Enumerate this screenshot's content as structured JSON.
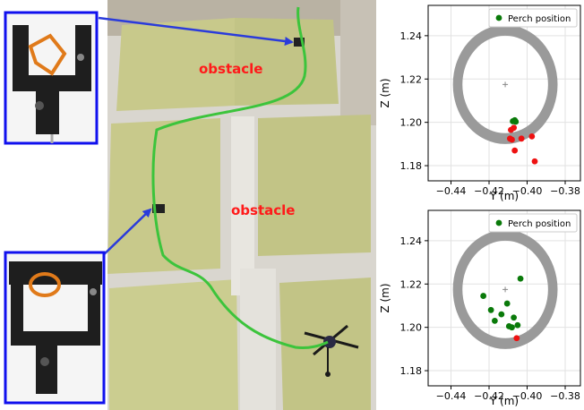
{
  "photo": {
    "obstacle_label_1": "obstacle",
    "obstacle_label_2": "obstacle",
    "colors": {
      "obstacle_text": "#ff1a1a",
      "trajectory": "#3cc43c",
      "callout_border": "#1010ee",
      "arrow": "#2a3bdb"
    }
  },
  "chart_data": [
    {
      "type": "scatter",
      "title": "",
      "xlabel": "Y (m)",
      "ylabel": "Z (m)",
      "xlim": [
        -0.452,
        -0.372
      ],
      "ylim": [
        1.173,
        1.254
      ],
      "xticks": [
        -0.44,
        -0.42,
        -0.4,
        -0.38
      ],
      "yticks": [
        1.18,
        1.2,
        1.22,
        1.24
      ],
      "xtick_labels": [
        "−0.44",
        "−0.42",
        "−0.40",
        "−0.38"
      ],
      "ytick_labels": [
        "1.18",
        "1.20",
        "1.22",
        "1.24"
      ],
      "grid": true,
      "legend": {
        "position": "top-right",
        "entries": [
          {
            "label": "Perch position",
            "color": "#0a7a0a"
          }
        ]
      },
      "target_ring": {
        "center": [
          -0.4115,
          1.2175
        ],
        "outer_radius": 0.0275,
        "inner_radius": 0.0225,
        "color": "#9a9a9a"
      },
      "series": [
        {
          "name": "Perch position",
          "color": "#0a7a0a",
          "points": [
            [
              -0.4075,
              1.2005
            ],
            [
              -0.4065,
              1.201
            ],
            [
              -0.406,
              1.2003
            ]
          ]
        },
        {
          "name": "",
          "color": "#ee1111",
          "points": [
            [
              -0.4085,
              1.1965
            ],
            [
              -0.407,
              1.1975
            ],
            [
              -0.409,
              1.1925
            ],
            [
              -0.408,
              1.192
            ],
            [
              -0.403,
              1.1925
            ],
            [
              -0.4065,
              1.187
            ],
            [
              -0.3975,
              1.1935
            ],
            [
              -0.396,
              1.182
            ]
          ]
        }
      ]
    },
    {
      "type": "scatter",
      "title": "",
      "xlabel": "Y (m)",
      "ylabel": "Z (m)",
      "xlim": [
        -0.452,
        -0.372
      ],
      "ylim": [
        1.173,
        1.254
      ],
      "xticks": [
        -0.44,
        -0.42,
        -0.4,
        -0.38
      ],
      "yticks": [
        1.18,
        1.2,
        1.22,
        1.24
      ],
      "xtick_labels": [
        "−0.44",
        "−0.42",
        "−0.40",
        "−0.38"
      ],
      "ytick_labels": [
        "1.18",
        "1.20",
        "1.22",
        "1.24"
      ],
      "grid": true,
      "legend": {
        "position": "top-right",
        "entries": [
          {
            "label": "Perch position",
            "color": "#0a7a0a"
          }
        ]
      },
      "target_ring": {
        "center": [
          -0.4115,
          1.2175
        ],
        "outer_radius": 0.0275,
        "inner_radius": 0.0225,
        "color": "#9a9a9a"
      },
      "series": [
        {
          "name": "Perch position",
          "color": "#0a7a0a",
          "points": [
            [
              -0.4035,
              1.2225
            ],
            [
              -0.423,
              1.2145
            ],
            [
              -0.4105,
              1.211
            ],
            [
              -0.419,
              1.208
            ],
            [
              -0.4135,
              1.206
            ],
            [
              -0.407,
              1.2045
            ],
            [
              -0.417,
              1.203
            ],
            [
              -0.4095,
              1.2005
            ],
            [
              -0.408,
              1.2
            ],
            [
              -0.405,
              1.201
            ]
          ]
        },
        {
          "name": "",
          "color": "#ee1111",
          "points": [
            [
              -0.4055,
              1.195
            ]
          ]
        }
      ]
    }
  ]
}
